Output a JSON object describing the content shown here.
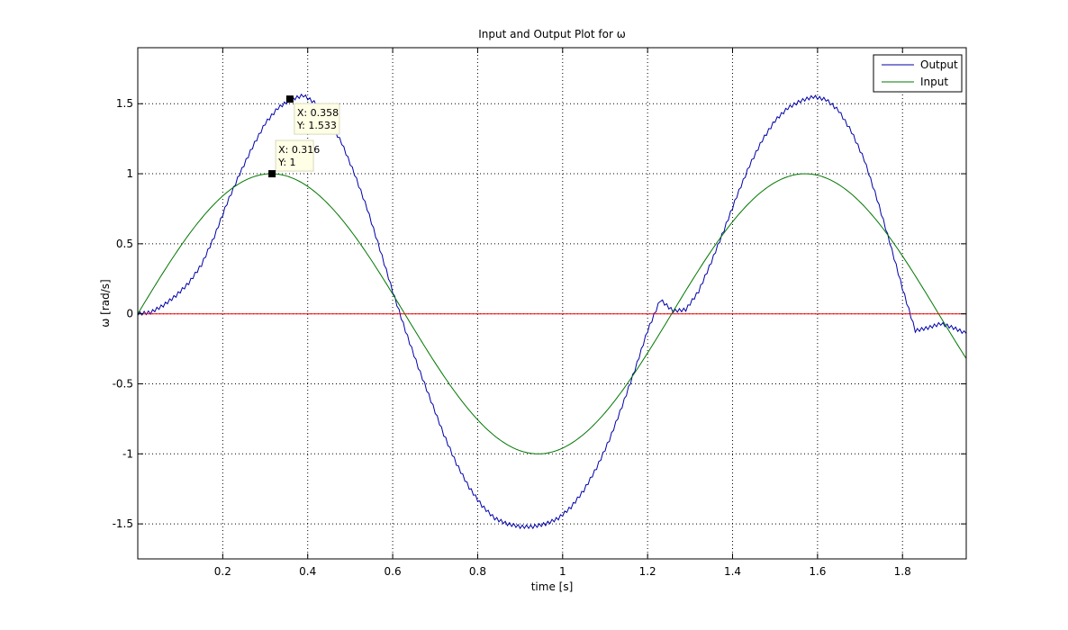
{
  "chart_data": {
    "type": "line",
    "title": "Input and Output Plot for ω",
    "xlabel": "time [s]",
    "ylabel": "ω [rad/s]",
    "xlim": [
      0,
      1.95
    ],
    "ylim": [
      -1.75,
      1.9
    ],
    "xticks": [
      0.2,
      0.4,
      0.6,
      0.8,
      1,
      1.2,
      1.4,
      1.6,
      1.8
    ],
    "xtick_labels": [
      "0.2",
      "0.4",
      "0.6",
      "0.8",
      "1",
      "1.2",
      "1.4",
      "1.6",
      "1.8"
    ],
    "yticks": [
      -1.5,
      -1,
      -0.5,
      0,
      0.5,
      1,
      1.5
    ],
    "ytick_labels": [
      "-1.5",
      "-1",
      "-0.5",
      "0",
      "0.5",
      "1",
      "1.5"
    ],
    "grid": true,
    "legend_position": "top-right",
    "series": [
      {
        "name": "Output",
        "color": "#0000aa",
        "x": [
          0,
          0.03,
          0.06,
          0.09,
          0.12,
          0.15,
          0.18,
          0.21,
          0.24,
          0.27,
          0.3,
          0.33,
          0.36,
          0.39,
          0.42,
          0.45,
          0.48,
          0.51,
          0.54,
          0.57,
          0.6,
          0.63,
          0.66,
          0.69,
          0.72,
          0.75,
          0.78,
          0.81,
          0.84,
          0.87,
          0.9,
          0.93,
          0.96,
          0.99,
          1.02,
          1.05,
          1.08,
          1.11,
          1.14,
          1.17,
          1.2,
          1.23,
          1.26,
          1.29,
          1.32,
          1.35,
          1.38,
          1.41,
          1.44,
          1.47,
          1.5,
          1.53,
          1.56,
          1.59,
          1.62,
          1.65,
          1.68,
          1.71,
          1.74,
          1.77,
          1.8,
          1.83,
          1.86,
          1.89,
          1.92,
          1.95
        ],
        "y": [
          0,
          0.01,
          0.06,
          0.13,
          0.22,
          0.35,
          0.55,
          0.79,
          1.0,
          1.19,
          1.36,
          1.47,
          1.53,
          1.56,
          1.5,
          1.38,
          1.22,
          1.0,
          0.75,
          0.46,
          0.16,
          -0.12,
          -0.38,
          -0.62,
          -0.86,
          -1.07,
          -1.24,
          -1.37,
          -1.46,
          -1.5,
          -1.52,
          -1.52,
          -1.5,
          -1.46,
          -1.38,
          -1.26,
          -1.1,
          -0.9,
          -0.66,
          -0.4,
          -0.12,
          0.1,
          0.02,
          0.03,
          0.16,
          0.37,
          0.6,
          0.84,
          1.06,
          1.24,
          1.38,
          1.47,
          1.52,
          1.55,
          1.53,
          1.45,
          1.3,
          1.1,
          0.82,
          0.51,
          0.18,
          -0.12,
          -0.1,
          -0.07,
          -0.1,
          -0.14
        ]
      },
      {
        "name": "Input",
        "color": "#007700",
        "function": "sin(5t)",
        "x_range": [
          0,
          1.95
        ]
      },
      {
        "name": "",
        "color": "#ff0000",
        "x": [
          0,
          1.95
        ],
        "y": [
          0,
          0
        ]
      }
    ],
    "annotations": [
      {
        "x": 0.358,
        "y": 1.533,
        "label_x": "X: 0.358",
        "label_y": "Y: 1.533",
        "anchor": "right-below"
      },
      {
        "x": 0.316,
        "y": 1,
        "label_x": "X: 0.316",
        "label_y": "Y: 1",
        "anchor": "right-above"
      }
    ]
  }
}
